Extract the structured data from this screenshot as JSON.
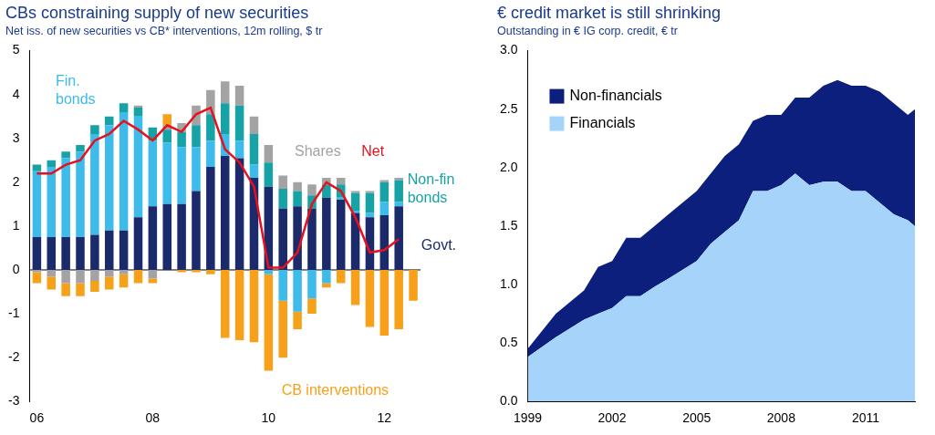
{
  "chart_data": [
    {
      "type": "bar",
      "title": "CBs constraining supply of new securities",
      "subtitle": "Net iss. of new securities vs CB* interventions, 12m rolling, $ tr",
      "categories": [
        "06",
        null,
        null,
        null,
        null,
        null,
        null,
        null,
        "08",
        null,
        null,
        null,
        null,
        null,
        null,
        null,
        "10",
        null,
        null,
        null,
        null,
        null,
        null,
        null,
        "12",
        null,
        null
      ],
      "stacked": true,
      "grid": false,
      "ylim": [
        -3,
        5
      ],
      "yticks": [
        -3,
        -2,
        -1,
        0,
        1,
        2,
        3,
        4,
        5
      ],
      "series": [
        {
          "name": "Govt.",
          "color": "#1b2a6b",
          "values": [
            0.75,
            0.75,
            0.75,
            0.75,
            0.8,
            0.9,
            0.9,
            1.2,
            1.45,
            1.5,
            1.5,
            1.8,
            2.35,
            2.6,
            2.55,
            2.1,
            1.9,
            1.4,
            1.45,
            1.4,
            1.65,
            1.6,
            1.3,
            1.2,
            1.25,
            1.45,
            null
          ]
        },
        {
          "name": "Fin. bonds",
          "color": "#3dbbea",
          "values": [
            1.5,
            1.6,
            1.8,
            1.95,
            2.3,
            2.4,
            2.7,
            2.3,
            1.5,
            1.4,
            1.3,
            1.0,
            0.6,
            0.5,
            0.4,
            0.3,
            -0.1,
            -0.7,
            -0.95,
            -0.65,
            -0.3,
            0.05,
            0.05,
            0.1,
            0.3,
            0.1,
            null
          ]
        },
        {
          "name": "Non-fin bonds",
          "color": "#17a2a6",
          "values": [
            0.15,
            0.15,
            0.15,
            0.15,
            0.2,
            0.2,
            0.2,
            0.2,
            0.3,
            0.3,
            0.35,
            0.5,
            0.6,
            0.7,
            0.8,
            0.7,
            0.55,
            0.45,
            0.35,
            0.3,
            0.3,
            0.3,
            0.4,
            0.45,
            0.45,
            0.5,
            null
          ]
        },
        {
          "name": "Shares",
          "color": "#a3a3a3",
          "values": [
            -0.05,
            -0.15,
            -0.3,
            -0.3,
            -0.25,
            -0.15,
            -0.1,
            0.05,
            -0.2,
            0.1,
            0.2,
            0.45,
            0.55,
            0.5,
            0.45,
            0.4,
            0.4,
            0.3,
            0.2,
            0.25,
            0.15,
            0.15,
            0.05,
            0.05,
            0.05,
            0.05,
            null
          ]
        },
        {
          "name": "CB interventions",
          "color": "#f7a11a",
          "values": [
            -0.25,
            -0.3,
            -0.3,
            -0.3,
            -0.25,
            -0.3,
            -0.3,
            -0.3,
            -0.1,
            0.25,
            -0.05,
            -0.05,
            -0.1,
            -1.55,
            -1.6,
            -1.65,
            -2.2,
            -1.3,
            -0.4,
            -0.35,
            -0.1,
            -0.3,
            -0.8,
            -1.3,
            -1.5,
            -1.35,
            -0.7
          ]
        },
        {
          "name": "Net",
          "color": "#e8101c",
          "type": "line",
          "values": [
            2.2,
            2.2,
            2.4,
            2.5,
            2.95,
            3.1,
            3.4,
            3.2,
            2.95,
            3.3,
            3.15,
            3.55,
            3.7,
            2.75,
            2.45,
            1.9,
            0.05,
            0.05,
            0.4,
            1.5,
            2.0,
            1.8,
            1.2,
            0.4,
            0.45,
            0.7,
            null
          ]
        }
      ]
    },
    {
      "type": "area",
      "title": "€ credit market is still shrinking",
      "subtitle": "Outstanding in € IG corp. credit, € tr",
      "stacked": true,
      "grid": false,
      "legend": "upper left",
      "x": [
        1999,
        2000,
        2001,
        2001.5,
        2002,
        2002.5,
        2003,
        2003.5,
        2004,
        2005,
        2005.5,
        2006,
        2006.5,
        2007,
        2007.5,
        2008,
        2008.5,
        2009,
        2009.5,
        2010,
        2010.5,
        2011,
        2011.5,
        2012,
        2012.5,
        2012.75
      ],
      "xlim": [
        1999,
        2012.75
      ],
      "xticks": [
        1999,
        2002,
        2005,
        2008,
        2011
      ],
      "ylim": [
        0,
        3
      ],
      "yticks": [
        {
          "value": 0,
          "label": "0.0"
        },
        0.5,
        {
          "value": 1,
          "label": "1.0"
        },
        1.5,
        {
          "value": 2,
          "label": "2.0"
        },
        2.5,
        {
          "value": 3,
          "label": "3.0"
        }
      ],
      "series": [
        {
          "name": "Non-financials",
          "color": "#0c1f7c",
          "values": [
            0.07,
            0.2,
            0.25,
            0.4,
            0.4,
            0.5,
            0.5,
            0.52,
            0.55,
            0.6,
            0.6,
            0.65,
            0.65,
            0.6,
            0.65,
            0.6,
            0.65,
            0.75,
            0.82,
            0.87,
            0.9,
            0.9,
            0.95,
            0.95,
            0.9,
            1.0
          ]
        },
        {
          "name": "Financials",
          "color": "#a6d3fa",
          "values": [
            0.38,
            0.55,
            0.7,
            0.75,
            0.8,
            0.9,
            0.9,
            0.98,
            1.05,
            1.2,
            1.35,
            1.45,
            1.55,
            1.8,
            1.8,
            1.85,
            1.95,
            1.85,
            1.88,
            1.88,
            1.8,
            1.8,
            1.7,
            1.6,
            1.55,
            1.5
          ]
        }
      ]
    }
  ]
}
